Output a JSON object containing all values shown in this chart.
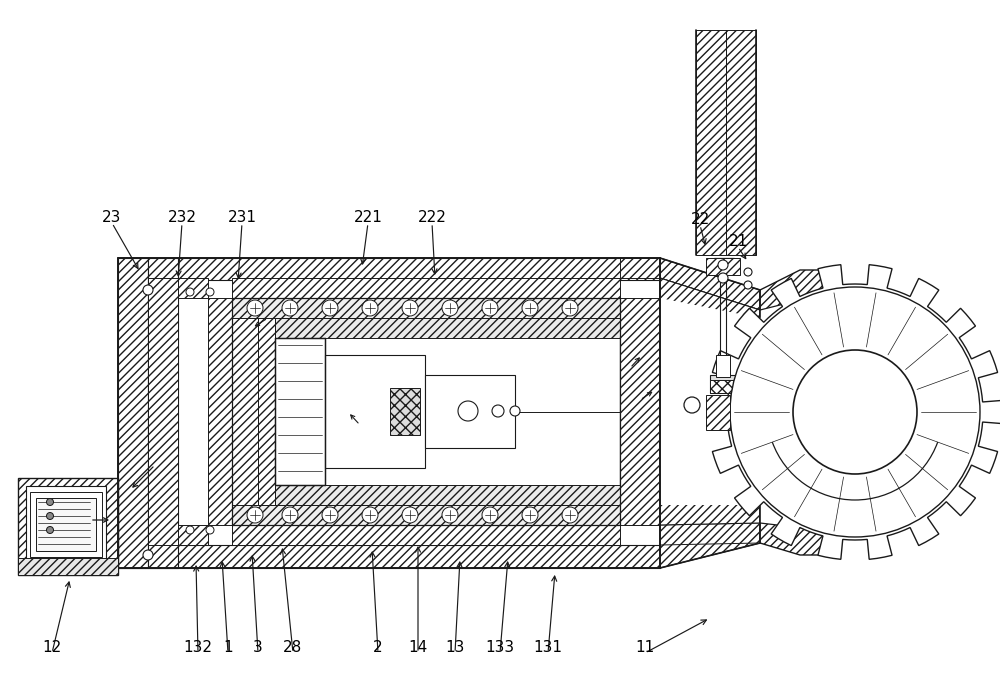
{
  "background_color": "#ffffff",
  "line_color": "#1a1a1a",
  "figsize": [
    10.0,
    6.95
  ],
  "dpi": 100,
  "labels": [
    [
      "12",
      52,
      648
    ],
    [
      "132",
      198,
      648
    ],
    [
      "1",
      228,
      648
    ],
    [
      "3",
      258,
      648
    ],
    [
      "28",
      293,
      648
    ],
    [
      "2",
      378,
      648
    ],
    [
      "14",
      418,
      648
    ],
    [
      "13",
      455,
      648
    ],
    [
      "133",
      500,
      648
    ],
    [
      "131",
      548,
      648
    ],
    [
      "11",
      645,
      648
    ],
    [
      "23",
      112,
      218
    ],
    [
      "232",
      182,
      218
    ],
    [
      "231",
      242,
      218
    ],
    [
      "221",
      368,
      218
    ],
    [
      "222",
      432,
      218
    ],
    [
      "22",
      700,
      220
    ],
    [
      "21",
      738,
      242
    ]
  ],
  "leader_lines": [
    [
      "12",
      52,
      648,
      70,
      578
    ],
    [
      "132",
      198,
      648,
      196,
      562
    ],
    [
      "1",
      228,
      648,
      222,
      558
    ],
    [
      "3",
      258,
      648,
      252,
      552
    ],
    [
      "28",
      293,
      648,
      282,
      545
    ],
    [
      "2",
      378,
      648,
      372,
      548
    ],
    [
      "14",
      418,
      648,
      418,
      543
    ],
    [
      "13",
      455,
      648,
      460,
      558
    ],
    [
      "133",
      500,
      648,
      508,
      558
    ],
    [
      "131",
      548,
      648,
      555,
      572
    ],
    [
      "11",
      645,
      648,
      710,
      618
    ],
    [
      "23",
      112,
      218,
      140,
      272
    ],
    [
      "232",
      182,
      218,
      178,
      280
    ],
    [
      "231",
      242,
      218,
      238,
      282
    ],
    [
      "221",
      368,
      218,
      362,
      268
    ],
    [
      "222",
      432,
      218,
      435,
      278
    ],
    [
      "22",
      700,
      220,
      706,
      248
    ],
    [
      "21",
      738,
      242,
      748,
      262
    ]
  ]
}
